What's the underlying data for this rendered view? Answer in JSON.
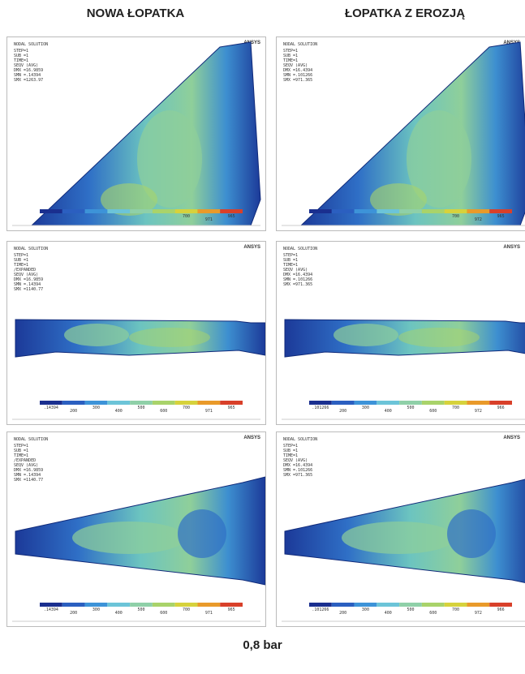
{
  "header": {
    "left": "NOWA ŁOPATKA",
    "right": "ŁOPATKA Z EROZJĄ"
  },
  "panels": [
    {
      "logo": "ANSYS",
      "title": "NODAL SOLUTION",
      "info": [
        "STEP=1",
        "SUB =1",
        "TIME=1",
        "SEQV   (AVG)",
        "DMX =16.9859",
        "SMN =.14394",
        "SMX =1263.97"
      ],
      "legend": [
        "700",
        "971",
        "965"
      ]
    },
    {
      "logo": "ANSYS",
      "title": "NODAL SOLUTION",
      "info": [
        "STEP=1",
        "SUB =1",
        "TIME=1",
        "SEQV   (AVG)",
        "DMX =16.4394",
        "SMN =.101266",
        "SMX =971.365"
      ],
      "legend": [
        "700",
        "972",
        "965"
      ]
    },
    {
      "logo": "ANSYS",
      "title": "NODAL SOLUTION",
      "info": [
        "STEP=1",
        "SUB =1",
        "TIME=1",
        "/EXPANDED",
        "SEQV   (AVG)",
        "DMX =16.9859",
        "SMN =.14394",
        "SMX =1140.77"
      ],
      "legend": [
        ".14394",
        "200",
        "300",
        "400",
        "500",
        "600",
        "700",
        "971",
        "965"
      ]
    },
    {
      "logo": "ANSYS",
      "title": "NODAL SOLUTION",
      "info": [
        "STEP=1",
        "SUB =1",
        "TIME=1",
        "SEQV   (AVG)",
        "DMX =16.4394",
        "SMN =.101266",
        "SMX =971.365"
      ],
      "legend": [
        ".101266",
        "200",
        "300",
        "400",
        "500",
        "600",
        "700",
        "972",
        "966"
      ]
    },
    {
      "logo": "ANSYS",
      "title": "NODAL SOLUTION",
      "info": [
        "STEP=1",
        "SUB =1",
        "TIME=1",
        "/EXPANDED",
        "SEQV   (AVG)",
        "DMX =16.9859",
        "SMN =.14394",
        "SMX =1140.77"
      ],
      "legend": [
        ".14394",
        "200",
        "300",
        "400",
        "500",
        "600",
        "700",
        "971",
        "965"
      ]
    },
    {
      "logo": "ANSYS",
      "title": "NODAL SOLUTION",
      "info": [
        "STEP=1",
        "SUB =1",
        "TIME=1",
        "SEQV   (AVG)",
        "DMX =16.4394",
        "SMN =.101266",
        "SMX =971.365"
      ],
      "legend": [
        ".101266",
        "200",
        "300",
        "400",
        "500",
        "600",
        "700",
        "972",
        "966"
      ]
    }
  ],
  "footer": "0,8 bar"
}
